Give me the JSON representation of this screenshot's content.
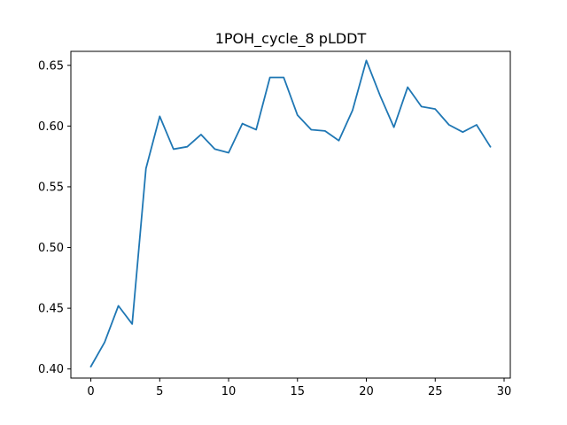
{
  "chart_data": {
    "type": "line",
    "title": "1POH_cycle_8 pLDDT",
    "xlabel": "",
    "ylabel": "",
    "xlim": [
      -1.45,
      30.45
    ],
    "ylim": [
      0.3925,
      0.6615
    ],
    "xticks": [
      0,
      5,
      10,
      15,
      20,
      25,
      30
    ],
    "xtick_labels": [
      "0",
      "5",
      "10",
      "15",
      "20",
      "25",
      "30"
    ],
    "yticks": [
      0.4,
      0.45,
      0.5,
      0.55,
      0.6,
      0.65
    ],
    "ytick_labels": [
      "0.40",
      "0.45",
      "0.50",
      "0.55",
      "0.60",
      "0.65"
    ],
    "grid": false,
    "legend": "none",
    "series": [
      {
        "color": "#1f77b4",
        "x": [
          0,
          1,
          2,
          3,
          4,
          5,
          6,
          7,
          8,
          9,
          10,
          11,
          12,
          13,
          14,
          15,
          16,
          17,
          18,
          19,
          20,
          21,
          22,
          23,
          24,
          25,
          26,
          27,
          28,
          29
        ],
        "values": [
          0.402,
          0.422,
          0.452,
          0.437,
          0.565,
          0.608,
          0.581,
          0.583,
          0.593,
          0.581,
          0.578,
          0.602,
          0.597,
          0.64,
          0.64,
          0.609,
          0.597,
          0.596,
          0.588,
          0.613,
          0.654,
          0.625,
          0.599,
          0.632,
          0.616,
          0.614,
          0.601,
          0.595,
          0.601,
          0.583
        ]
      }
    ]
  }
}
